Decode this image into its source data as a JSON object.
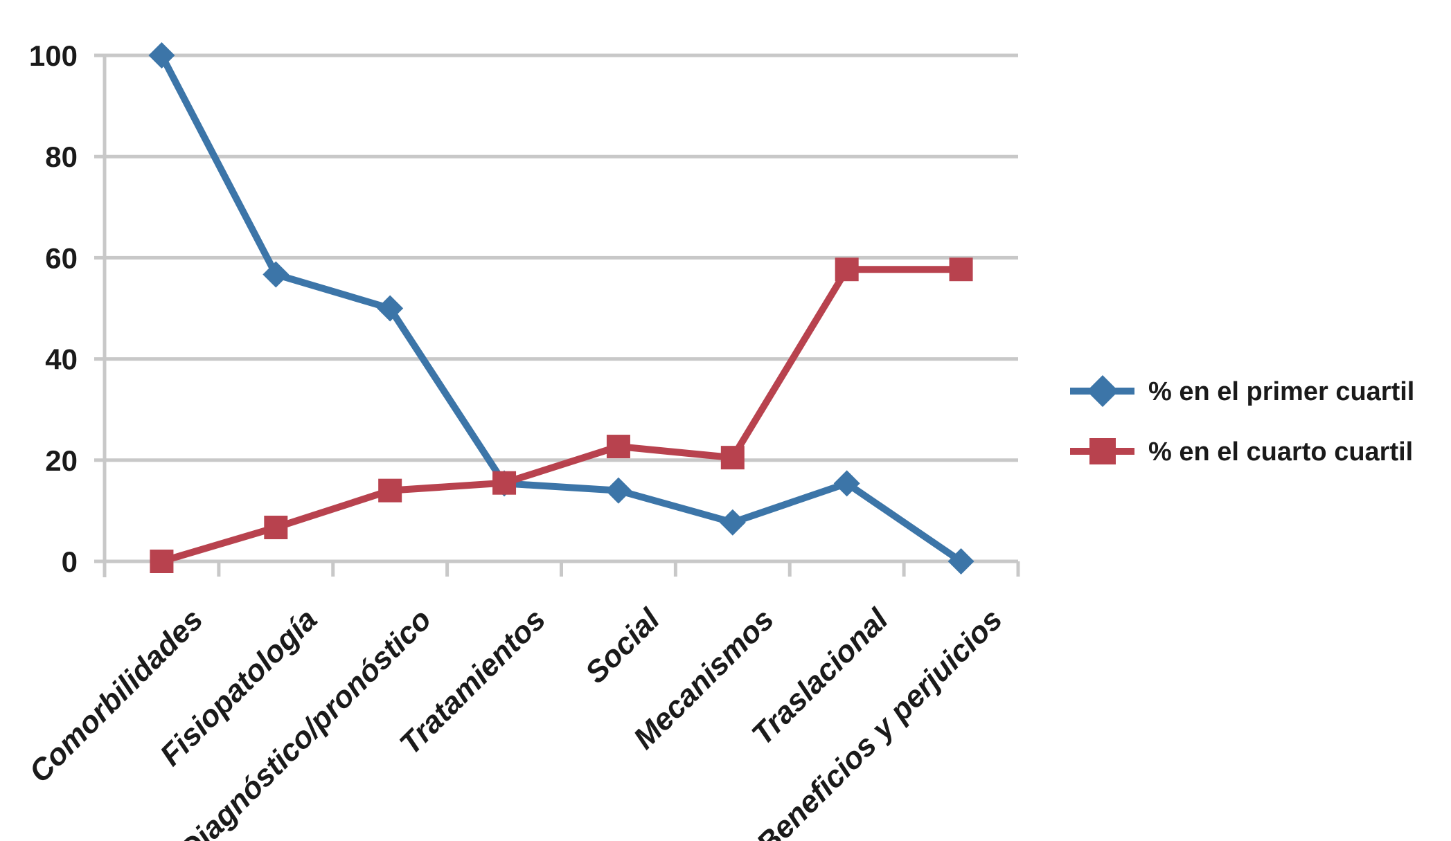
{
  "chart_data": {
    "type": "line",
    "title": "",
    "categories": [
      "Comorbilidades",
      "Fisiopatología",
      "Diagnóstico/pronóstico",
      "Tratamientos",
      "Social",
      "Mecanismos",
      "Traslacional",
      "Beneficios y perjuicios"
    ],
    "series": [
      {
        "name": "% en el primer cuartil",
        "color": "#3C75A8",
        "marker": "diamond",
        "values": [
          100,
          56.7,
          50,
          15.4,
          14,
          7.7,
          15.4,
          0
        ]
      },
      {
        "name": "% en el cuarto cuartil",
        "color": "#B8424E",
        "marker": "square",
        "values": [
          0,
          6.7,
          14,
          15.5,
          22.7,
          20.5,
          57.7,
          57.7
        ]
      }
    ],
    "xlabel": "",
    "ylabel": "",
    "ylim": [
      0,
      100
    ],
    "yticks": [
      0,
      20,
      40,
      60,
      80,
      100
    ],
    "ytick_labels": [
      "0",
      "20",
      "40",
      "60",
      "80",
      "100"
    ],
    "grid": "horizontal",
    "legend_position": "right",
    "colors": {
      "axis_and_grid": "#C8C8C8",
      "text": "#1A1A1A",
      "background": "#FFFFFF"
    }
  }
}
